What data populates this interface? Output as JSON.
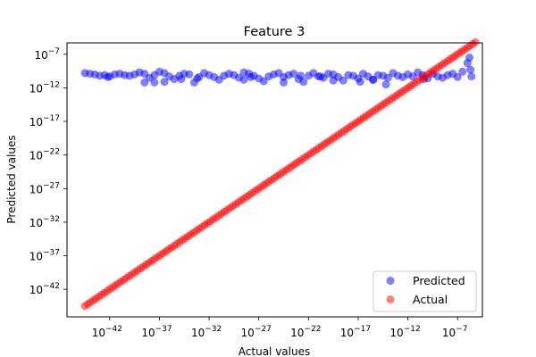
{
  "chart_data": {
    "type": "scatter",
    "title": "Feature 3",
    "xlabel": "Actual values",
    "ylabel": "Predicted values",
    "scale": "log",
    "xlim_exp": [
      -46.3,
      -4.5
    ],
    "ylim_exp": [
      -46.1,
      -5.3
    ],
    "xticks": [
      {
        "exp": -42,
        "label": "10",
        "sup": "−42"
      },
      {
        "exp": -37,
        "label": "10",
        "sup": "−37"
      },
      {
        "exp": -32,
        "label": "10",
        "sup": "−32"
      },
      {
        "exp": -27,
        "label": "10",
        "sup": "−27"
      },
      {
        "exp": -22,
        "label": "10",
        "sup": "−22"
      },
      {
        "exp": -17,
        "label": "10",
        "sup": "−17"
      },
      {
        "exp": -12,
        "label": "10",
        "sup": "−12"
      },
      {
        "exp": -7,
        "label": "10",
        "sup": "−7"
      }
    ],
    "yticks": [
      {
        "exp": -42,
        "label": "10",
        "sup": "−42"
      },
      {
        "exp": -37,
        "label": "10",
        "sup": "−37"
      },
      {
        "exp": -32,
        "label": "10",
        "sup": "−32"
      },
      {
        "exp": -27,
        "label": "10",
        "sup": "−27"
      },
      {
        "exp": -22,
        "label": "10",
        "sup": "−22"
      },
      {
        "exp": -17,
        "label": "10",
        "sup": "−17"
      },
      {
        "exp": -12,
        "label": "10",
        "sup": "−12"
      },
      {
        "exp": -7,
        "label": "10",
        "sup": "−7"
      }
    ],
    "grid": false,
    "legend_position": "bottom-right",
    "series": [
      {
        "name": "Predicted",
        "color": "#0000ff",
        "alpha": 0.5,
        "points_log10": [
          [
            -44.5,
            -9.8
          ],
          [
            -44,
            -9.9
          ],
          [
            -43.5,
            -10
          ],
          [
            -43,
            -10.2
          ],
          [
            -42.5,
            -10.1
          ],
          [
            -42,
            -10.3
          ],
          [
            -41.5,
            -10
          ],
          [
            -41,
            -9.9
          ],
          [
            -40.5,
            -10.1
          ],
          [
            -40,
            -10.2
          ],
          [
            -39.5,
            -10
          ],
          [
            -39,
            -9.7
          ],
          [
            -38.5,
            -9.9
          ],
          [
            -38,
            -10.5
          ],
          [
            -37.5,
            -10.1
          ],
          [
            -37,
            -9.6
          ],
          [
            -36.5,
            -9.8
          ],
          [
            -36,
            -10.3
          ],
          [
            -35.5,
            -10.7
          ],
          [
            -35,
            -10.2
          ],
          [
            -34.5,
            -9.9
          ],
          [
            -34,
            -10
          ],
          [
            -33.5,
            -11.2
          ],
          [
            -33,
            -10.4
          ],
          [
            -32.5,
            -9.8
          ],
          [
            -32,
            -10.1
          ],
          [
            -31.5,
            -10.4
          ],
          [
            -31,
            -10.8
          ],
          [
            -30.5,
            -10.2
          ],
          [
            -30,
            -9.9
          ],
          [
            -29.5,
            -10.1
          ],
          [
            -29,
            -10.5
          ],
          [
            -28.5,
            -9.7
          ],
          [
            -28,
            -9.9
          ],
          [
            -27.5,
            -10.2
          ],
          [
            -27,
            -10.6
          ],
          [
            -26.5,
            -11
          ],
          [
            -26,
            -10.3
          ],
          [
            -25.5,
            -10
          ],
          [
            -25,
            -9.8
          ],
          [
            -24.5,
            -10.4
          ],
          [
            -24,
            -10.1
          ],
          [
            -23.5,
            -9.9
          ],
          [
            -23,
            -10.7
          ],
          [
            -22.5,
            -11.1
          ],
          [
            -22,
            -10.2
          ],
          [
            -21.5,
            -9.8
          ],
          [
            -21,
            -10.3
          ],
          [
            -20.5,
            -10.5
          ],
          [
            -20,
            -9.9
          ],
          [
            -19.5,
            -10
          ],
          [
            -19,
            -10.4
          ],
          [
            -18.5,
            -10.9
          ],
          [
            -18,
            -10.1
          ],
          [
            -17.5,
            -10.2
          ],
          [
            -17,
            -10.6
          ],
          [
            -16.5,
            -9.9
          ],
          [
            -16,
            -10.3
          ],
          [
            -15.5,
            -10.8
          ],
          [
            -15,
            -10.1
          ],
          [
            -14.5,
            -10.2
          ],
          [
            -14,
            -10.5
          ],
          [
            -13.5,
            -9.8
          ],
          [
            -13,
            -10.2
          ],
          [
            -12.5,
            -10.4
          ],
          [
            -12,
            -10
          ],
          [
            -11.5,
            -10.3
          ],
          [
            -11,
            -9.7
          ],
          [
            -10.5,
            -10.1
          ],
          [
            -10,
            -10.6
          ],
          [
            -9.5,
            -9.9
          ],
          [
            -9,
            -10.3
          ],
          [
            -8.5,
            -10.5
          ],
          [
            -8,
            -10.1
          ],
          [
            -7.5,
            -9.9
          ],
          [
            -7,
            -10.4
          ],
          [
            -6.5,
            -9.6
          ],
          [
            -6,
            -8.3
          ],
          [
            -5.8,
            -7.5
          ],
          [
            -5.7,
            -9.3
          ],
          [
            -38.5,
            -11.2
          ],
          [
            -37.5,
            -11.2
          ],
          [
            -36.5,
            -11.1
          ],
          [
            -24.5,
            -11.2
          ],
          [
            -16.8,
            -11.1
          ],
          [
            -14.2,
            -11.5
          ],
          [
            -15.5,
            -10.8
          ],
          [
            -19.5,
            -10.9
          ],
          [
            -28.5,
            -10.8
          ],
          [
            -33.2,
            -10.6
          ],
          [
            -5.6,
            -10.3
          ],
          [
            -10.4,
            -10.7
          ],
          [
            -22.8,
            -10.2
          ],
          [
            -34.8,
            -10.7
          ],
          [
            -42.2,
            -10.4
          ],
          [
            -20.8,
            -10.3
          ],
          [
            -27.8,
            -10.4
          ]
        ]
      },
      {
        "name": "Actual",
        "color": "#ff0000",
        "alpha": 0.5,
        "diagonal": {
          "from_exp": -44.5,
          "to_exp": -5.2,
          "steps": 140
        }
      }
    ]
  }
}
